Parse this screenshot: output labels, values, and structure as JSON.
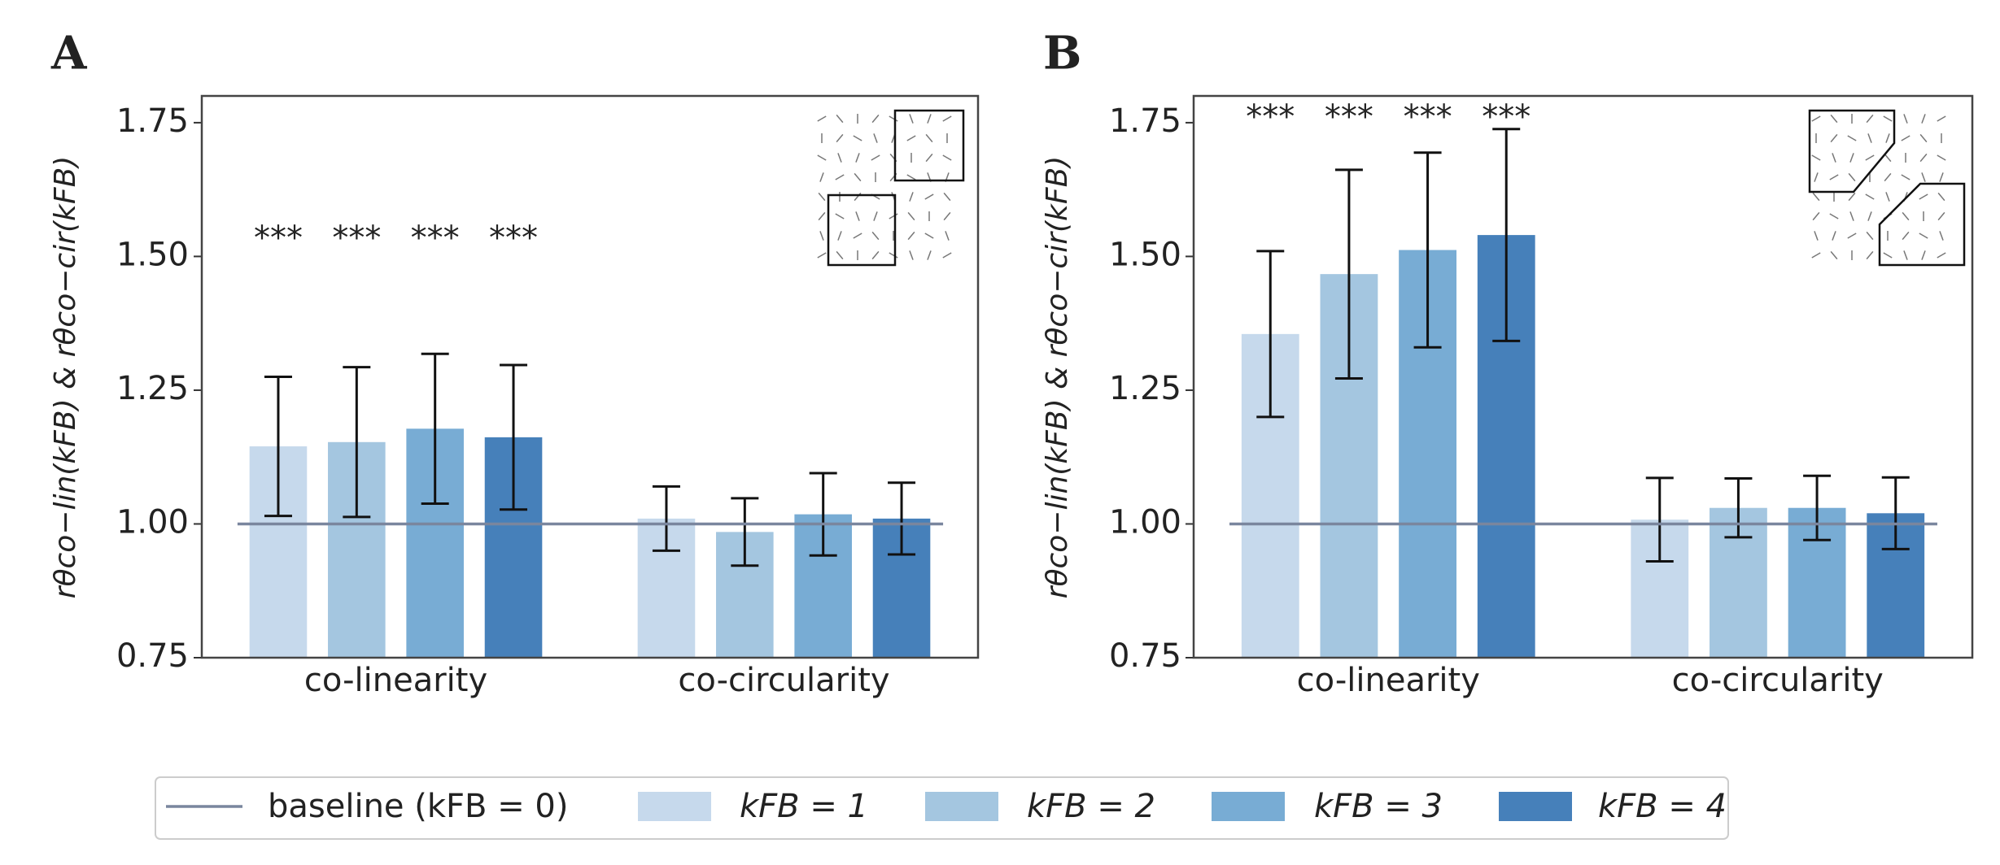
{
  "chart_data": [
    {
      "type": "bar",
      "panel_label": "A",
      "ylabel": "rθco−lin(kFB)    &    rθco−cir(kFB)",
      "categories": [
        "co-linearity",
        "co-circularity"
      ],
      "ylim": [
        0.75,
        1.8
      ],
      "yticks": [
        0.75,
        {
          "value": 1,
          "label": "1.00"
        },
        1.25,
        {
          "value": 1.5,
          "label": "1.50"
        },
        1.75
      ],
      "baseline": 1,
      "series": [
        {
          "values": [
            1.145,
            1.01
          ],
          "errors": [
            0.13,
            0.06
          ]
        },
        {
          "values": [
            1.153,
            0.985
          ],
          "errors": [
            0.14,
            0.063
          ]
        },
        {
          "values": [
            1.178,
            1.018
          ],
          "errors": [
            0.14,
            0.077
          ]
        },
        {
          "values": [
            1.162,
            1.01
          ],
          "errors": [
            0.135,
            0.067
          ]
        }
      ],
      "annotations": [
        "***",
        "***",
        "***",
        "***"
      ]
    },
    {
      "type": "bar",
      "panel_label": "B",
      "ylabel": "rθco−lin(kFB)    &    rθco−cir(kFB)",
      "categories": [
        "co-linearity",
        "co-circularity"
      ],
      "ylim": [
        0.75,
        1.8
      ],
      "yticks": [
        0.75,
        {
          "value": 1,
          "label": "1.00"
        },
        1.25,
        {
          "value": 1.5,
          "label": "1.50"
        },
        1.75
      ],
      "baseline": 1,
      "series": [
        {
          "values": [
            1.355,
            1.008
          ],
          "errors": [
            0.155,
            0.078
          ]
        },
        {
          "values": [
            1.467,
            1.03
          ],
          "errors": [
            0.195,
            0.055
          ]
        },
        {
          "values": [
            1.512,
            1.03
          ],
          "errors": [
            0.182,
            0.06
          ]
        },
        {
          "values": [
            1.54,
            1.02
          ],
          "errors": [
            0.198,
            0.067
          ]
        }
      ],
      "annotations": [
        "***",
        "***",
        "***",
        "***"
      ]
    }
  ],
  "legend": {
    "baseline": {
      "name": "baseline (kFB = 0)",
      "color": "#7a869e"
    },
    "items": [
      {
        "name": "kFB = 1",
        "color": "#c6d9ec"
      },
      {
        "name": "kFB = 2",
        "color": "#a4c6e0"
      },
      {
        "name": "kFB = 3",
        "color": "#78acd4"
      },
      {
        "name": "kFB = 4",
        "color": "#4680ba"
      }
    ]
  }
}
